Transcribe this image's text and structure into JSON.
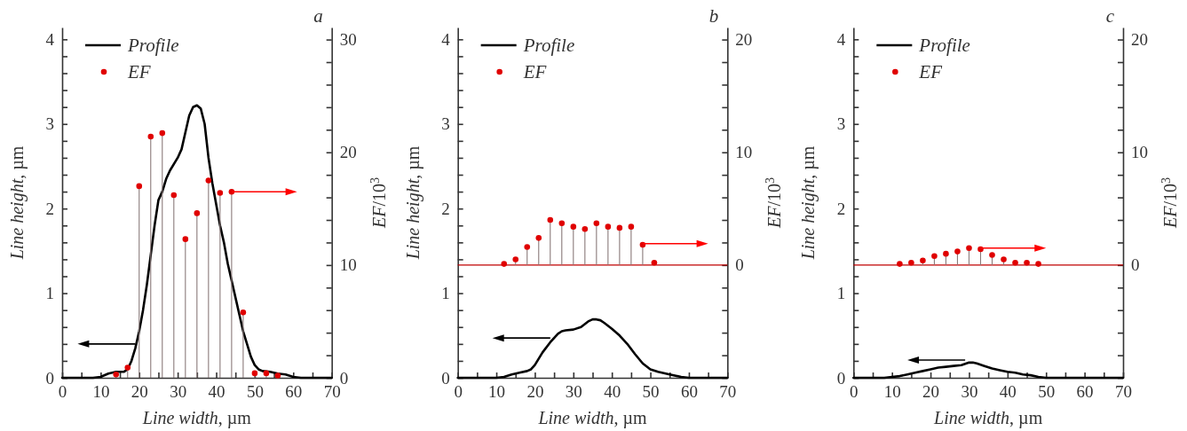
{
  "chart_data": [
    {
      "type": "line",
      "title": "a",
      "xlabel": "Line width, µm",
      "ylabel": "Line height, µm",
      "y2label": "EF/10$^{3}$",
      "legend": "top left",
      "grid": false,
      "xlim": [
        0,
        70
      ],
      "xticks": [
        0,
        {
          "value": 5,
          "label": null
        },
        10,
        {
          "value": 15,
          "label": null
        },
        20,
        {
          "value": 25,
          "label": null
        },
        30,
        {
          "value": 35,
          "label": null
        },
        40,
        {
          "value": 45,
          "label": null
        },
        50,
        {
          "value": 55,
          "label": null
        },
        60,
        {
          "value": 65,
          "label": null
        },
        70
      ],
      "ylim": [
        0,
        4.14
      ],
      "yticks": [
        0,
        {
          "value": 0.2,
          "label": null
        },
        {
          "value": 0.4,
          "label": null
        },
        {
          "value": 0.6,
          "label": null
        },
        {
          "value": 0.8,
          "label": null
        },
        1,
        {
          "value": 1.2,
          "label": null
        },
        {
          "value": 1.4,
          "label": null
        },
        {
          "value": 1.6,
          "label": null
        },
        {
          "value": 1.8,
          "label": null
        },
        2,
        {
          "value": 2.2,
          "label": null
        },
        {
          "value": 2.4,
          "label": null
        },
        {
          "value": 2.6,
          "label": null
        },
        {
          "value": 2.8,
          "label": null
        },
        3,
        {
          "value": 3.2,
          "label": null
        },
        {
          "value": 3.4,
          "label": null
        },
        {
          "value": 3.6,
          "label": null
        },
        {
          "value": 3.8,
          "label": null
        },
        4
      ],
      "y2lim": [
        0,
        31.07
      ],
      "y2ticks": [
        0,
        {
          "value": 2,
          "label": null
        },
        {
          "value": 4,
          "label": null
        },
        {
          "value": 6,
          "label": null
        },
        {
          "value": 8,
          "label": null
        },
        10,
        {
          "value": 12,
          "label": null
        },
        {
          "value": 14,
          "label": null
        },
        {
          "value": 16,
          "label": null
        },
        {
          "value": 18,
          "label": null
        },
        20,
        {
          "value": 22,
          "label": null
        },
        {
          "value": 24,
          "label": null
        },
        {
          "value": 26,
          "label": null
        },
        {
          "value": 28,
          "label": null
        },
        30
      ],
      "series": [
        {
          "name": "Profile",
          "color": "#000000",
          "x": [
            0,
            8,
            10,
            12,
            14,
            16,
            17,
            18,
            19,
            20,
            21,
            22,
            23,
            24,
            25,
            26,
            27,
            28,
            30,
            31,
            32,
            33,
            34,
            35,
            36,
            37,
            38,
            39,
            40,
            41,
            42,
            43,
            44,
            45,
            46,
            47,
            48,
            49,
            50,
            51,
            52,
            54,
            56,
            58,
            60,
            62,
            70
          ],
          "values": [
            0,
            0,
            0.01,
            0.05,
            0.07,
            0.07,
            0.1,
            0.2,
            0.35,
            0.55,
            0.8,
            1.1,
            1.45,
            1.8,
            2.1,
            2.2,
            2.35,
            2.45,
            2.6,
            2.7,
            2.9,
            3.1,
            3.2,
            3.22,
            3.18,
            3.0,
            2.6,
            2.3,
            2.05,
            1.8,
            1.6,
            1.35,
            1.15,
            0.95,
            0.75,
            0.55,
            0.4,
            0.25,
            0.15,
            0.1,
            0.08,
            0.07,
            0.05,
            0.04,
            0.01,
            0,
            0
          ]
        },
        {
          "name": "EF",
          "type": "lollipop",
          "axis": "y2",
          "marker": "circle",
          "color": "#e00000",
          "x": [
            14,
            17,
            20,
            23,
            26,
            29,
            32,
            35,
            38,
            41,
            44,
            47,
            50,
            53,
            56
          ],
          "values": [
            0.3,
            0.9,
            17.0,
            21.4,
            21.7,
            16.2,
            12.3,
            14.6,
            17.5,
            16.4,
            16.5,
            5.8,
            0.4,
            0.4,
            0.2
          ]
        }
      ]
    },
    {
      "type": "line",
      "title": "b",
      "xlabel": "Line width, µm",
      "ylabel": "Line height, µm",
      "y2label": "EF/10$^{3}$",
      "legend": "top left",
      "grid": false,
      "xlim": [
        0,
        70
      ],
      "xticks": [
        0,
        {
          "value": 5,
          "label": null
        },
        10,
        {
          "value": 15,
          "label": null
        },
        20,
        {
          "value": 25,
          "label": null
        },
        30,
        {
          "value": 35,
          "label": null
        },
        40,
        {
          "value": 45,
          "label": null
        },
        50,
        {
          "value": 55,
          "label": null
        },
        60,
        {
          "value": 65,
          "label": null
        },
        70
      ],
      "ylim": [
        0,
        4.14
      ],
      "yticks": [
        0,
        {
          "value": 0.2,
          "label": null
        },
        {
          "value": 0.4,
          "label": null
        },
        {
          "value": 0.6,
          "label": null
        },
        {
          "value": 0.8,
          "label": null
        },
        1,
        {
          "value": 1.2,
          "label": null
        },
        {
          "value": 1.4,
          "label": null
        },
        {
          "value": 1.6,
          "label": null
        },
        {
          "value": 1.8,
          "label": null
        },
        2,
        {
          "value": 2.2,
          "label": null
        },
        {
          "value": 2.4,
          "label": null
        },
        {
          "value": 2.6,
          "label": null
        },
        {
          "value": 2.8,
          "label": null
        },
        3,
        {
          "value": 3.2,
          "label": null
        },
        {
          "value": 3.4,
          "label": null
        },
        {
          "value": 3.6,
          "label": null
        },
        {
          "value": 3.8,
          "label": null
        },
        4
      ],
      "y2lim": [
        -10,
        21.07
      ],
      "y2ticks": [
        {
          "value": -10,
          "label": null
        },
        {
          "value": -8,
          "label": null
        },
        {
          "value": -6,
          "label": null
        },
        {
          "value": -4,
          "label": null
        },
        {
          "value": -2,
          "label": null
        },
        0,
        {
          "value": 2,
          "label": null
        },
        {
          "value": 4,
          "label": null
        },
        {
          "value": 6,
          "label": null
        },
        {
          "value": 8,
          "label": null
        },
        10,
        {
          "value": 12,
          "label": null
        },
        {
          "value": 14,
          "label": null
        },
        {
          "value": 16,
          "label": null
        },
        {
          "value": 18,
          "label": null
        },
        20
      ],
      "ref_lines": [
        {
          "axis": "y2",
          "value": 0,
          "color": "#c00000"
        }
      ],
      "series": [
        {
          "name": "Profile",
          "color": "#000000",
          "x": [
            0,
            10,
            12,
            14,
            16,
            18,
            19,
            20,
            22,
            24,
            26,
            27,
            28,
            30,
            32,
            34,
            35,
            36,
            37,
            38,
            40,
            42,
            44,
            46,
            48,
            50,
            52,
            55,
            58,
            60,
            70
          ],
          "values": [
            0,
            0,
            0.01,
            0.04,
            0.06,
            0.08,
            0.1,
            0.15,
            0.3,
            0.42,
            0.52,
            0.55,
            0.56,
            0.57,
            0.6,
            0.67,
            0.69,
            0.69,
            0.68,
            0.65,
            0.58,
            0.5,
            0.4,
            0.28,
            0.17,
            0.1,
            0.07,
            0.04,
            0.01,
            0,
            0
          ]
        },
        {
          "name": "EF",
          "type": "lollipop",
          "axis": "y2",
          "marker": "circle",
          "color": "#e00000",
          "x": [
            12,
            15,
            18,
            21,
            24,
            27,
            30,
            33,
            36,
            39,
            42,
            45,
            48,
            51
          ],
          "values": [
            0.1,
            0.5,
            1.6,
            2.4,
            4.0,
            3.7,
            3.4,
            3.2,
            3.7,
            3.4,
            3.3,
            3.4,
            1.8,
            0.2
          ]
        }
      ]
    },
    {
      "type": "line",
      "title": "c",
      "xlabel": "Line width, µm",
      "ylabel": "Line height, µm",
      "y2label": "EF/10$^{3}$",
      "legend": "top left",
      "grid": false,
      "xlim": [
        0,
        70
      ],
      "xticks": [
        0,
        {
          "value": 5,
          "label": null
        },
        10,
        {
          "value": 15,
          "label": null
        },
        20,
        {
          "value": 25,
          "label": null
        },
        30,
        {
          "value": 35,
          "label": null
        },
        40,
        {
          "value": 45,
          "label": null
        },
        50,
        {
          "value": 55,
          "label": null
        },
        60,
        {
          "value": 65,
          "label": null
        },
        70
      ],
      "ylim": [
        0,
        4.14
      ],
      "yticks": [
        0,
        {
          "value": 0.2,
          "label": null
        },
        {
          "value": 0.4,
          "label": null
        },
        {
          "value": 0.6,
          "label": null
        },
        {
          "value": 0.8,
          "label": null
        },
        1,
        {
          "value": 1.2,
          "label": null
        },
        {
          "value": 1.4,
          "label": null
        },
        {
          "value": 1.6,
          "label": null
        },
        {
          "value": 1.8,
          "label": null
        },
        2,
        {
          "value": 2.2,
          "label": null
        },
        {
          "value": 2.4,
          "label": null
        },
        {
          "value": 2.6,
          "label": null
        },
        {
          "value": 2.8,
          "label": null
        },
        3,
        {
          "value": 3.2,
          "label": null
        },
        {
          "value": 3.4,
          "label": null
        },
        {
          "value": 3.6,
          "label": null
        },
        {
          "value": 3.8,
          "label": null
        },
        4
      ],
      "y2lim": [
        -10,
        21.07
      ],
      "y2ticks": [
        {
          "value": -10,
          "label": null
        },
        {
          "value": -8,
          "label": null
        },
        {
          "value": -6,
          "label": null
        },
        {
          "value": -4,
          "label": null
        },
        {
          "value": -2,
          "label": null
        },
        0,
        {
          "value": 2,
          "label": null
        },
        {
          "value": 4,
          "label": null
        },
        {
          "value": 6,
          "label": null
        },
        {
          "value": 8,
          "label": null
        },
        10,
        {
          "value": 12,
          "label": null
        },
        {
          "value": 14,
          "label": null
        },
        {
          "value": 16,
          "label": null
        },
        {
          "value": 18,
          "label": null
        },
        20
      ],
      "ref_lines": [
        {
          "axis": "y2",
          "value": 0,
          "color": "#c00000"
        }
      ],
      "series": [
        {
          "name": "Profile",
          "color": "#000000",
          "x": [
            0,
            8,
            10,
            12,
            14,
            16,
            18,
            20,
            22,
            24,
            26,
            28,
            30,
            31,
            32,
            34,
            36,
            38,
            40,
            42,
            44,
            46,
            48,
            50,
            70
          ],
          "values": [
            0,
            0,
            0.01,
            0.02,
            0.04,
            0.06,
            0.08,
            0.1,
            0.12,
            0.13,
            0.14,
            0.15,
            0.18,
            0.18,
            0.17,
            0.14,
            0.11,
            0.09,
            0.07,
            0.06,
            0.04,
            0.03,
            0.01,
            0,
            0
          ]
        },
        {
          "name": "EF",
          "type": "lollipop",
          "axis": "y2",
          "marker": "circle",
          "color": "#e00000",
          "x": [
            12,
            15,
            18,
            21,
            24,
            27,
            30,
            33,
            36,
            39,
            42,
            45,
            48
          ],
          "values": [
            0.1,
            0.2,
            0.4,
            0.8,
            1.0,
            1.2,
            1.5,
            1.4,
            0.9,
            0.5,
            0.2,
            0.2,
            0.1
          ]
        }
      ]
    }
  ]
}
